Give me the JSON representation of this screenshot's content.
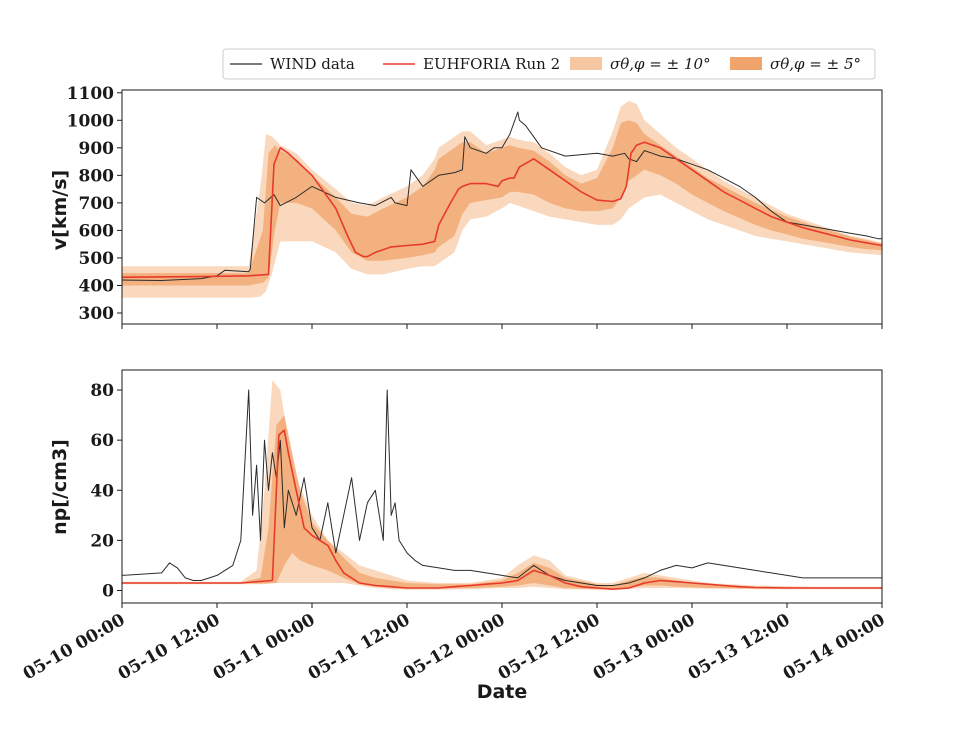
{
  "chart_data": [
    {
      "type": "line",
      "panel": "top",
      "ylabel": "v[km/s]",
      "ylim": [
        260,
        1110
      ],
      "yticks": [
        300,
        400,
        500,
        600,
        700,
        800,
        900,
        1000,
        1100
      ],
      "xlim_hours": [
        0,
        96
      ],
      "grid": false,
      "series": [
        {
          "name": "WIND data",
          "color": "#2b2b2b",
          "x_hours": [
            0,
            5,
            10,
            12,
            13,
            16,
            16.2,
            17,
            18,
            19.2,
            20,
            22,
            24,
            27,
            30,
            32,
            34,
            34.5,
            36,
            36.5,
            38,
            40,
            42,
            43,
            43.3,
            44,
            46,
            47,
            48,
            49,
            50,
            50.2,
            51,
            52,
            53,
            56,
            60,
            62,
            63.5,
            64,
            65,
            66,
            67,
            68,
            70,
            72,
            74,
            76,
            78,
            80,
            82,
            84,
            86,
            88,
            90,
            92,
            94,
            95.5,
            96
          ],
          "values": [
            420,
            418,
            425,
            435,
            455,
            450,
            460,
            720,
            700,
            730,
            690,
            720,
            760,
            720,
            700,
            690,
            720,
            700,
            690,
            820,
            760,
            800,
            810,
            820,
            940,
            900,
            880,
            900,
            900,
            950,
            1030,
            1000,
            980,
            940,
            900,
            870,
            880,
            870,
            880,
            860,
            850,
            890,
            880,
            870,
            860,
            840,
            820,
            790,
            760,
            720,
            670,
            630,
            620,
            610,
            600,
            590,
            580,
            570,
            570
          ]
        },
        {
          "name": "EUHFORIA Run 2",
          "color": "#e83a2c",
          "x_hours": [
            0,
            10,
            16,
            18.5,
            19.2,
            20,
            21,
            24,
            27,
            28.5,
            29.5,
            30.5,
            31,
            32,
            34,
            36,
            38,
            39.5,
            40,
            41.5,
            42.5,
            43,
            44,
            46,
            47.5,
            48,
            49,
            49.5,
            50.2,
            52,
            54,
            56,
            58,
            60,
            62,
            63,
            63.7,
            64.3,
            65,
            66,
            68,
            70,
            72,
            74,
            76,
            78,
            80,
            82,
            84,
            86,
            88,
            90,
            92,
            94,
            96
          ],
          "values": [
            430,
            432,
            435,
            440,
            840,
            900,
            880,
            800,
            680,
            580,
            520,
            505,
            505,
            520,
            540,
            545,
            550,
            560,
            620,
            700,
            750,
            760,
            770,
            770,
            760,
            780,
            790,
            790,
            830,
            860,
            820,
            780,
            740,
            710,
            705,
            715,
            760,
            880,
            910,
            920,
            900,
            860,
            820,
            780,
            740,
            710,
            680,
            650,
            630,
            610,
            595,
            580,
            565,
            555,
            545
          ]
        }
      ],
      "bands": [
        {
          "name": "σθ,φ = ± 10°",
          "color": "#f7c7a1",
          "opacity": 0.7,
          "x_hours": [
            0,
            16,
            17.5,
            18.2,
            19,
            20,
            22,
            24,
            27,
            29,
            31,
            33,
            36,
            38,
            39.5,
            40,
            42,
            43,
            44,
            46,
            48,
            49,
            50,
            52,
            54,
            56,
            58,
            60,
            62,
            63,
            64,
            65,
            66,
            68,
            70,
            72,
            74,
            76,
            78,
            80,
            82,
            84,
            86,
            88,
            90,
            92,
            94,
            96
          ],
          "upper": [
            470,
            470,
            760,
            950,
            940,
            910,
            880,
            820,
            750,
            700,
            690,
            720,
            760,
            800,
            860,
            900,
            940,
            960,
            960,
            910,
            930,
            940,
            930,
            920,
            880,
            830,
            800,
            820,
            960,
            1050,
            1070,
            1060,
            1000,
            950,
            900,
            860,
            820,
            780,
            750,
            720,
            690,
            660,
            640,
            620,
            600,
            580,
            570,
            555
          ],
          "lower": [
            355,
            355,
            360,
            380,
            450,
            560,
            560,
            560,
            520,
            460,
            440,
            440,
            460,
            470,
            470,
            480,
            520,
            600,
            640,
            650,
            680,
            700,
            690,
            670,
            650,
            640,
            630,
            620,
            620,
            640,
            680,
            700,
            720,
            730,
            700,
            670,
            640,
            620,
            600,
            580,
            570,
            560,
            550,
            540,
            530,
            520,
            515,
            510
          ]
        },
        {
          "name": "σθ,φ = ± 5°",
          "color": "#f0a46b",
          "opacity": 0.75,
          "x_hours": [
            0,
            16,
            17.8,
            18.5,
            19.3,
            20,
            22,
            24,
            27,
            29,
            31,
            33,
            36,
            38,
            39.5,
            40,
            42,
            43,
            44,
            46,
            48,
            49,
            50,
            52,
            54,
            56,
            58,
            60,
            62,
            63,
            64,
            65,
            66,
            68,
            70,
            72,
            74,
            76,
            78,
            80,
            82,
            84,
            86,
            88,
            90,
            92,
            94,
            96
          ],
          "upper": [
            445,
            445,
            600,
            880,
            910,
            890,
            860,
            800,
            720,
            660,
            650,
            680,
            720,
            760,
            820,
            860,
            900,
            920,
            920,
            880,
            900,
            910,
            900,
            890,
            850,
            800,
            770,
            790,
            900,
            990,
            1000,
            990,
            950,
            910,
            870,
            830,
            790,
            760,
            730,
            700,
            675,
            650,
            630,
            610,
            595,
            578,
            565,
            552
          ],
          "lower": [
            400,
            400,
            410,
            430,
            600,
            700,
            700,
            680,
            600,
            520,
            490,
            490,
            500,
            510,
            520,
            540,
            580,
            660,
            700,
            710,
            720,
            740,
            740,
            730,
            700,
            680,
            670,
            670,
            680,
            720,
            780,
            800,
            820,
            800,
            770,
            730,
            700,
            670,
            645,
            620,
            600,
            585,
            570,
            560,
            550,
            540,
            532,
            528
          ]
        }
      ]
    },
    {
      "type": "line",
      "panel": "bottom",
      "ylabel": "np[/cm3]",
      "ylim": [
        -5,
        88
      ],
      "yticks": [
        0,
        20,
        40,
        60,
        80
      ],
      "xlim_hours": [
        0,
        96
      ],
      "grid": false,
      "series": [
        {
          "name": "WIND data",
          "color": "#2b2b2b",
          "x_hours": [
            0,
            5,
            6,
            7,
            8,
            9,
            10,
            12,
            14,
            15,
            16,
            16.5,
            17,
            17.5,
            18,
            18.5,
            19,
            19.5,
            20,
            20.5,
            21,
            22,
            23,
            24,
            25,
            26,
            27,
            28,
            29,
            30,
            31,
            32,
            33,
            33.5,
            34,
            34.5,
            35,
            36,
            37,
            38,
            40,
            42,
            44,
            46,
            48,
            50,
            52,
            54,
            56,
            58,
            60,
            62,
            64,
            66,
            68,
            70,
            72,
            74,
            76,
            78,
            80,
            82,
            84,
            86,
            88,
            90,
            92,
            94,
            96
          ],
          "values": [
            6,
            7,
            11,
            9,
            5,
            4,
            4,
            6,
            10,
            20,
            80,
            30,
            50,
            20,
            60,
            40,
            55,
            45,
            60,
            25,
            40,
            30,
            45,
            25,
            20,
            35,
            15,
            30,
            45,
            20,
            35,
            40,
            20,
            80,
            30,
            35,
            20,
            15,
            12,
            10,
            9,
            8,
            8,
            7,
            6,
            5,
            10,
            6,
            4,
            3,
            2,
            2,
            3,
            5,
            8,
            10,
            9,
            11,
            10,
            9,
            8,
            7,
            6,
            5,
            5,
            5,
            5,
            5,
            5
          ]
        },
        {
          "name": "EUHFORIA Run 2",
          "color": "#e83a2c",
          "x_hours": [
            0,
            10,
            15,
            19,
            19.8,
            20.5,
            21,
            22,
            23,
            24,
            25,
            26,
            27,
            28,
            30,
            32,
            34,
            36,
            38,
            40,
            42,
            44,
            46,
            48,
            50,
            52,
            54,
            56,
            58,
            60,
            62,
            64,
            66,
            68,
            70,
            72,
            74,
            76,
            78,
            80,
            84,
            88,
            92,
            96
          ],
          "values": [
            3,
            3,
            3,
            4,
            62,
            64,
            55,
            40,
            25,
            22,
            20,
            18,
            12,
            7,
            3,
            2,
            1.5,
            1,
            1,
            1,
            1.5,
            2,
            2.5,
            3,
            4,
            8,
            6,
            3,
            1.5,
            1,
            0.5,
            1,
            3,
            4,
            3.5,
            3,
            2.5,
            2,
            1.5,
            1.2,
            1,
            1,
            1,
            1
          ]
        }
      ],
      "bands": [
        {
          "name": "σθ,φ = ± 10°",
          "color": "#f7c7a1",
          "opacity": 0.7,
          "x_hours": [
            0,
            15,
            17,
            18,
            19,
            20,
            21,
            22,
            24,
            26,
            28,
            30,
            32,
            34,
            36,
            40,
            44,
            48,
            50,
            52,
            54,
            56,
            60,
            62,
            64,
            66,
            68,
            70,
            74,
            80,
            88,
            96
          ],
          "upper": [
            3.5,
            3.5,
            8,
            40,
            84,
            80,
            60,
            45,
            30,
            20,
            15,
            10,
            8,
            6,
            4,
            3,
            3,
            5,
            10,
            14,
            12,
            6,
            3,
            3,
            5,
            7,
            6,
            5,
            3,
            2,
            1.5,
            1.5
          ],
          "lower": [
            2.5,
            2.5,
            2.5,
            2.5,
            3,
            3,
            3,
            3,
            3,
            3,
            3,
            2,
            1,
            0.5,
            0.3,
            0.3,
            0.5,
            1,
            1,
            1.5,
            1,
            0.5,
            0.3,
            0.3,
            0.5,
            1,
            1,
            1,
            0.8,
            0.5,
            0.5,
            0.5
          ]
        },
        {
          "name": "σθ,φ = ± 5°",
          "color": "#f0a46b",
          "opacity": 0.75,
          "x_hours": [
            0,
            15,
            17.5,
            18.5,
            19.5,
            20.5,
            21.5,
            22.5,
            24,
            26,
            28,
            30,
            32,
            34,
            36,
            40,
            44,
            48,
            50,
            52,
            54,
            56,
            60,
            62,
            64,
            66,
            68,
            70,
            74,
            80,
            88,
            96
          ],
          "upper": [
            3.2,
            3.2,
            5,
            25,
            66,
            70,
            55,
            40,
            27,
            20,
            13,
            7,
            5,
            4,
            3,
            2.5,
            2.5,
            4,
            7,
            11,
            9,
            5,
            2.5,
            2,
            4,
            5.5,
            5,
            4,
            2.5,
            1.5,
            1.2,
            1.2
          ],
          "lower": [
            2.8,
            2.8,
            2.8,
            2.8,
            3,
            10,
            15,
            12,
            10,
            8,
            5,
            2.5,
            1.5,
            1,
            0.8,
            0.8,
            1,
            1.5,
            2,
            3,
            2,
            1,
            0.5,
            0.5,
            1,
            2,
            2,
            1.5,
            1,
            0.8,
            0.8,
            0.8
          ]
        }
      ]
    }
  ],
  "xaxis": {
    "label": "Date",
    "ticks": [
      {
        "hours": 0,
        "label": "05-10 00:00"
      },
      {
        "hours": 12,
        "label": "05-10 12:00"
      },
      {
        "hours": 24,
        "label": "05-11 00:00"
      },
      {
        "hours": 36,
        "label": "05-11 12:00"
      },
      {
        "hours": 48,
        "label": "05-12 00:00"
      },
      {
        "hours": 60,
        "label": "05-12 12:00"
      },
      {
        "hours": 72,
        "label": "05-13 00:00"
      },
      {
        "hours": 84,
        "label": "05-13 12:00"
      },
      {
        "hours": 96,
        "label": "05-14 00:00"
      }
    ]
  },
  "legend": {
    "placement": "top-right",
    "entries": [
      {
        "label": "WIND data",
        "kind": "line",
        "color": "#2b2b2b"
      },
      {
        "label": "EUHFORIA Run 2",
        "kind": "line",
        "color": "#e83a2c"
      },
      {
        "label": "σθ,φ = ± 10°",
        "kind": "patch",
        "color": "#f7c7a1"
      },
      {
        "label": "σθ,φ = ± 5°",
        "kind": "patch",
        "color": "#f0a46b"
      }
    ]
  }
}
